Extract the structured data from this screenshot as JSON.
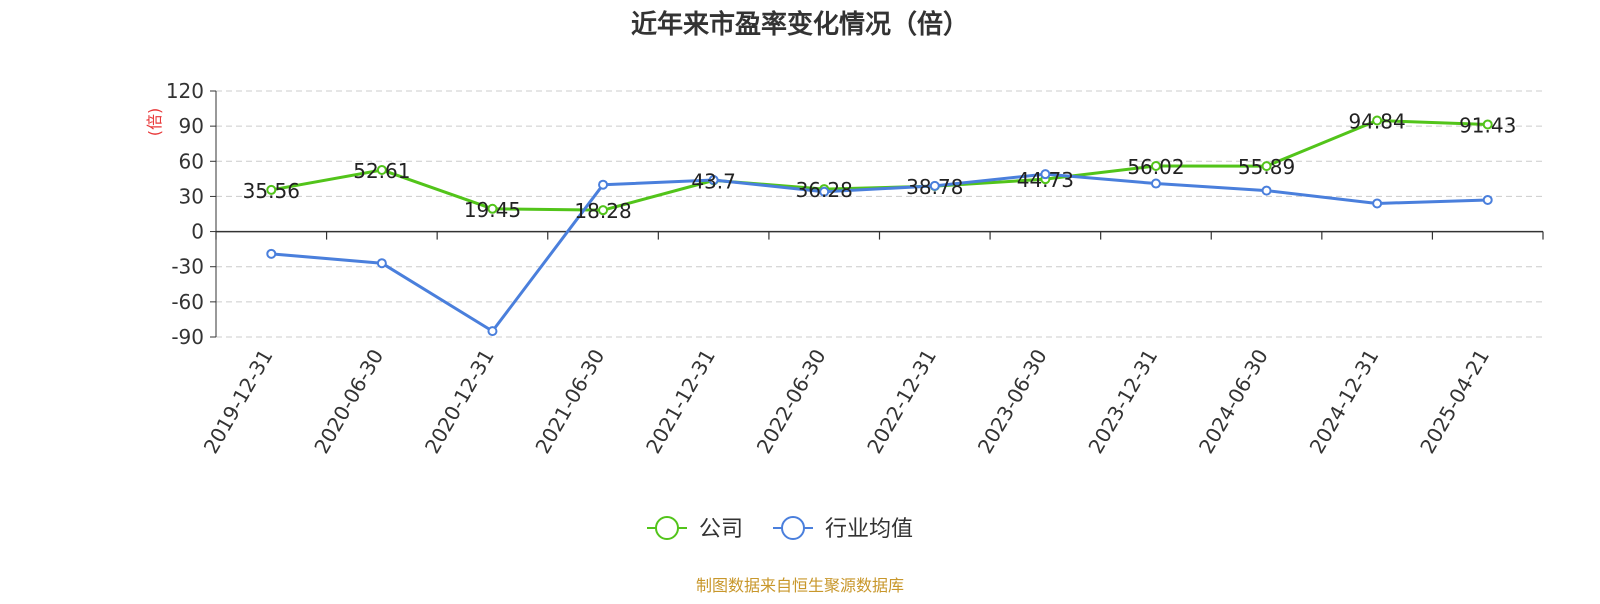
{
  "chart_data": {
    "type": "line",
    "title": "近年来市盈率变化情况（倍）",
    "ylabel": "(倍)",
    "xlabel": "",
    "categories": [
      "2019-12-31",
      "2020-06-30",
      "2020-12-31",
      "2021-06-30",
      "2021-12-31",
      "2022-06-30",
      "2022-12-31",
      "2023-06-30",
      "2023-12-31",
      "2024-06-30",
      "2024-12-31",
      "2025-04-21"
    ],
    "ylim": [
      -90,
      120
    ],
    "yticks": [
      "120",
      "90",
      "60",
      "30",
      "0",
      "-30",
      "-60",
      "-90"
    ],
    "ytick_values": [
      120,
      90,
      60,
      30,
      0,
      -30,
      -60,
      -90
    ],
    "grid": true,
    "legend": "bottom-center",
    "series": [
      {
        "name": "公司",
        "color": "#52c41a",
        "values": [
          35.56,
          52.61,
          19.45,
          18.28,
          43.7,
          36.28,
          38.78,
          44.73,
          56.02,
          55.89,
          94.84,
          91.43
        ],
        "labels": [
          "35.56",
          "52.61",
          "19.45",
          "18.28",
          "43.7",
          "36.28",
          "38.78",
          "44.73",
          "56.02",
          "55.89",
          "94.84",
          "91.43"
        ]
      },
      {
        "name": "行业均值",
        "color": "#4a7fdc",
        "values": [
          -19,
          -27,
          -85,
          40,
          44,
          34,
          39,
          49,
          41,
          35,
          24,
          27
        ]
      }
    ],
    "source": "制图数据来自恒生聚源数据库"
  },
  "colors": {
    "ylabel": "#e8393a",
    "source": "#c8972b",
    "axis": "#333333",
    "grid": "#cccccc"
  }
}
